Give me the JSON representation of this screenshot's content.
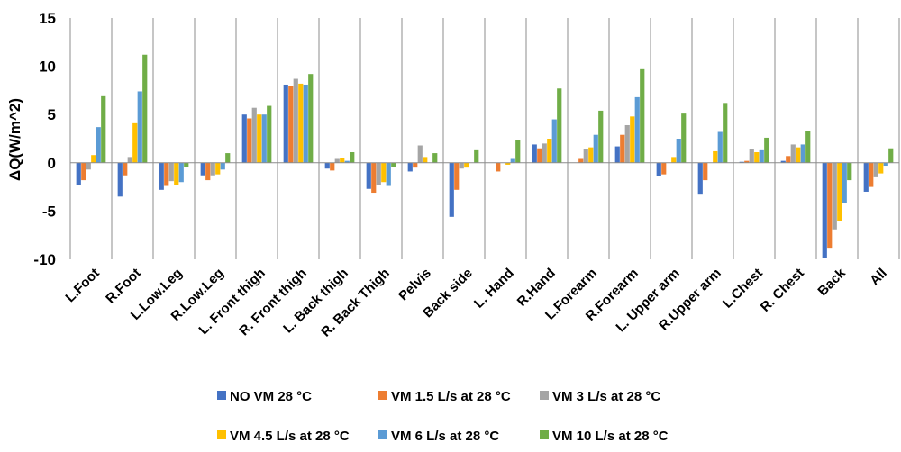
{
  "chart_data": {
    "type": "bar",
    "ylabel": "ΔQ(W/m^2)",
    "ylim": [
      -10,
      15
    ],
    "yticks": [
      "15",
      "10",
      "5",
      "0",
      "-5",
      "-10"
    ],
    "grid": false,
    "legend_position": "bottom",
    "categories": [
      "L.Foot",
      "R.Foot",
      "L.Low.Leg",
      "R.Low.Leg",
      "L. Front thigh",
      "R. Front thigh",
      "L. Back thigh",
      "R. Back Thigh",
      "Pelvis",
      "Back side",
      "L. Hand",
      "R.Hand",
      "L.Forearm",
      "R.Forearm",
      "L. Upper arm",
      "R.Upper arm",
      "L.Chest",
      "R. Chest",
      "Back",
      "All"
    ],
    "series": [
      {
        "name": "NO VM 28  °C",
        "color": "#4472C4",
        "values": [
          -2.3,
          -3.5,
          -2.8,
          -1.3,
          5.0,
          8.1,
          -0.6,
          -2.7,
          -0.9,
          -5.6,
          0.0,
          1.9,
          0.0,
          1.7,
          -1.4,
          -3.3,
          0.1,
          0.2,
          -9.9,
          -3.0
        ]
      },
      {
        "name": "VM 1.5 L/s at 28 °C",
        "color": "#ED7D31",
        "values": [
          -1.8,
          -1.3,
          -2.4,
          -1.8,
          4.6,
          8.0,
          -0.8,
          -3.1,
          -0.5,
          -2.8,
          -0.9,
          1.5,
          0.4,
          2.9,
          -1.2,
          -1.8,
          0.2,
          0.7,
          -8.8,
          -2.5
        ]
      },
      {
        "name": "VM 3 L/s at 28 °C",
        "color": "#A5A5A5",
        "values": [
          -0.7,
          0.6,
          -1.9,
          -1.3,
          5.7,
          8.7,
          0.4,
          -2.3,
          1.8,
          -0.6,
          0.0,
          2.0,
          1.4,
          3.9,
          0.0,
          0.0,
          1.4,
          1.9,
          -6.9,
          -1.5
        ]
      },
      {
        "name": "VM 4.5 L/s at 28 °C",
        "color": "#FFC000",
        "values": [
          0.8,
          4.1,
          -2.3,
          -1.2,
          5.0,
          8.2,
          0.5,
          -2.0,
          0.6,
          -0.5,
          -0.2,
          2.5,
          1.6,
          4.8,
          0.6,
          1.2,
          1.1,
          1.6,
          -6.0,
          -1.1
        ]
      },
      {
        "name": "VM 6 L/s at 28 °C",
        "color": "#5B9BD5",
        "values": [
          3.7,
          7.4,
          -2.0,
          -0.7,
          5.0,
          8.1,
          0.2,
          -2.4,
          0.0,
          0.0,
          0.4,
          4.5,
          2.9,
          6.8,
          2.5,
          3.2,
          1.3,
          1.9,
          -4.2,
          -0.3
        ]
      },
      {
        "name": "VM 10 L/s at 28 °C",
        "color": "#70AD47",
        "values": [
          6.9,
          11.2,
          -0.4,
          1.0,
          5.9,
          9.2,
          1.1,
          -0.4,
          1.0,
          1.3,
          2.4,
          7.7,
          5.4,
          9.7,
          5.1,
          6.2,
          2.6,
          3.3,
          -1.8,
          1.5
        ]
      }
    ]
  }
}
